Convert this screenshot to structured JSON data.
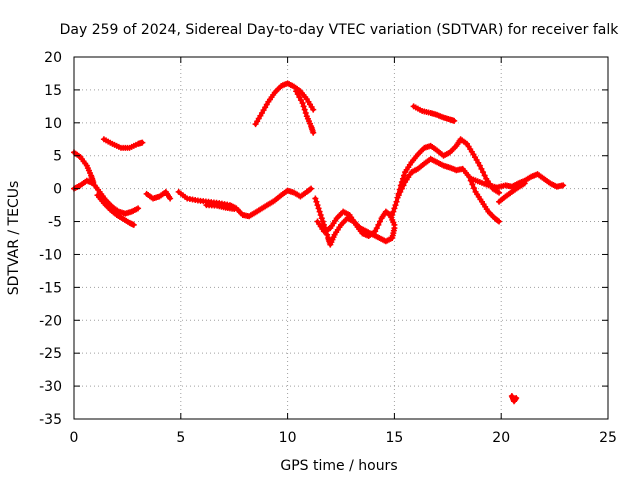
{
  "chart_data": {
    "type": "scatter",
    "title": "Day 259 of 2024, Sidereal Day-to-day VTEC variation (SDTVAR) for receiver falk",
    "xlabel": "GPS time / hours",
    "ylabel": "SDTVAR / TECUs",
    "xlim": [
      0,
      25
    ],
    "ylim": [
      -35,
      20
    ],
    "xticks": [
      0,
      5,
      10,
      15,
      20,
      25
    ],
    "yticks": [
      20,
      15,
      10,
      5,
      0,
      -5,
      -10,
      -15,
      -20,
      -25,
      -30,
      -35
    ],
    "grid": true,
    "legend": "none",
    "marker_color": "#ff0000",
    "series": [
      {
        "name": "tracks",
        "segments": [
          [
            [
              0.0,
              5.5
            ],
            [
              0.3,
              4.8
            ],
            [
              0.6,
              3.5
            ],
            [
              0.8,
              2.0
            ],
            [
              0.9,
              1.0
            ]
          ],
          [
            [
              0.0,
              0.0
            ],
            [
              0.3,
              0.5
            ],
            [
              0.6,
              1.2
            ],
            [
              0.9,
              0.8
            ],
            [
              1.2,
              -0.5
            ],
            [
              1.5,
              -1.8
            ],
            [
              1.8,
              -2.8
            ],
            [
              2.1,
              -3.5
            ],
            [
              2.4,
              -3.8
            ],
            [
              2.7,
              -3.5
            ],
            [
              3.0,
              -3.0
            ]
          ],
          [
            [
              1.1,
              -1.0
            ],
            [
              1.4,
              -2.2
            ],
            [
              1.7,
              -3.2
            ],
            [
              2.0,
              -4.0
            ],
            [
              2.3,
              -4.6
            ],
            [
              2.6,
              -5.2
            ],
            [
              2.8,
              -5.5
            ]
          ],
          [
            [
              1.4,
              7.5
            ],
            [
              1.8,
              6.8
            ],
            [
              2.2,
              6.2
            ],
            [
              2.6,
              6.2
            ],
            [
              3.0,
              6.8
            ],
            [
              3.2,
              7.0
            ]
          ],
          [
            [
              3.4,
              -0.8
            ],
            [
              3.7,
              -1.5
            ],
            [
              4.0,
              -1.2
            ],
            [
              4.3,
              -0.5
            ],
            [
              4.5,
              -1.5
            ]
          ],
          [
            [
              4.9,
              -0.5
            ],
            [
              5.3,
              -1.5
            ],
            [
              5.8,
              -1.8
            ],
            [
              6.3,
              -2.0
            ],
            [
              6.8,
              -2.2
            ],
            [
              7.3,
              -2.5
            ],
            [
              7.6,
              -3.0
            ],
            [
              7.9,
              -4.0
            ],
            [
              8.2,
              -4.2
            ],
            [
              8.5,
              -3.6
            ],
            [
              8.8,
              -3.0
            ],
            [
              9.1,
              -2.4
            ],
            [
              9.4,
              -1.8
            ],
            [
              9.7,
              -1.0
            ],
            [
              10.0,
              -0.3
            ],
            [
              10.3,
              -0.6
            ],
            [
              10.6,
              -1.2
            ],
            [
              10.9,
              -0.5
            ],
            [
              11.1,
              0.0
            ]
          ],
          [
            [
              6.2,
              -2.5
            ],
            [
              6.7,
              -2.6
            ],
            [
              7.1,
              -2.9
            ],
            [
              7.5,
              -3.1
            ]
          ],
          [
            [
              8.5,
              9.8
            ],
            [
              8.8,
              11.5
            ],
            [
              9.1,
              13.2
            ],
            [
              9.4,
              14.6
            ],
            [
              9.7,
              15.6
            ],
            [
              10.0,
              16.0
            ],
            [
              10.3,
              15.5
            ],
            [
              10.6,
              14.8
            ],
            [
              10.9,
              13.6
            ],
            [
              11.2,
              12.0
            ]
          ],
          [
            [
              10.4,
              14.8
            ],
            [
              10.7,
              13.0
            ],
            [
              10.9,
              11.0
            ],
            [
              11.1,
              9.5
            ],
            [
              11.2,
              8.5
            ]
          ],
          [
            [
              11.3,
              -1.5
            ],
            [
              11.5,
              -3.5
            ],
            [
              11.7,
              -5.5
            ],
            [
              11.9,
              -7.5
            ],
            [
              12.0,
              -8.5
            ],
            [
              12.2,
              -7.0
            ],
            [
              12.5,
              -5.5
            ],
            [
              12.8,
              -4.5
            ],
            [
              13.1,
              -5.0
            ],
            [
              13.4,
              -6.0
            ],
            [
              13.7,
              -6.5
            ],
            [
              14.0,
              -7.0
            ],
            [
              14.3,
              -7.5
            ],
            [
              14.6,
              -8.0
            ],
            [
              14.9,
              -7.5
            ],
            [
              15.0,
              -6.0
            ]
          ],
          [
            [
              11.4,
              -5.0
            ],
            [
              11.7,
              -6.5
            ],
            [
              12.0,
              -6.0
            ],
            [
              12.3,
              -4.5
            ],
            [
              12.6,
              -3.5
            ],
            [
              12.9,
              -4.0
            ],
            [
              13.2,
              -5.5
            ],
            [
              13.5,
              -6.8
            ],
            [
              13.8,
              -7.2
            ],
            [
              14.1,
              -6.5
            ],
            [
              14.4,
              -4.5
            ],
            [
              14.6,
              -3.5
            ],
            [
              14.8,
              -4.0
            ],
            [
              15.0,
              -5.5
            ]
          ],
          [
            [
              14.9,
              -4.0
            ],
            [
              15.1,
              -2.0
            ],
            [
              15.3,
              0.5
            ],
            [
              15.5,
              2.5
            ],
            [
              15.8,
              4.0
            ],
            [
              16.1,
              5.2
            ],
            [
              16.4,
              6.2
            ],
            [
              16.7,
              6.5
            ],
            [
              17.0,
              5.8
            ],
            [
              17.3,
              5.0
            ],
            [
              17.6,
              5.5
            ],
            [
              17.9,
              6.5
            ],
            [
              18.1,
              7.5
            ],
            [
              18.4,
              6.8
            ],
            [
              18.7,
              5.2
            ],
            [
              19.0,
              3.5
            ],
            [
              19.3,
              1.5
            ],
            [
              19.6,
              0.0
            ],
            [
              19.9,
              -0.6
            ]
          ],
          [
            [
              15.2,
              -1.0
            ],
            [
              15.5,
              1.0
            ],
            [
              15.8,
              2.5
            ],
            [
              16.1,
              3.0
            ],
            [
              16.4,
              3.8
            ],
            [
              16.7,
              4.5
            ],
            [
              17.0,
              4.0
            ],
            [
              17.3,
              3.5
            ],
            [
              17.6,
              3.2
            ],
            [
              17.9,
              2.8
            ],
            [
              18.2,
              3.0
            ],
            [
              18.5,
              1.8
            ],
            [
              18.8,
              -0.5
            ],
            [
              19.1,
              -2.0
            ],
            [
              19.4,
              -3.5
            ],
            [
              19.7,
              -4.5
            ],
            [
              19.9,
              -5.0
            ]
          ],
          [
            [
              15.9,
              12.5
            ],
            [
              16.3,
              11.8
            ],
            [
              16.7,
              11.5
            ],
            [
              17.0,
              11.2
            ],
            [
              17.3,
              10.8
            ],
            [
              17.6,
              10.5
            ],
            [
              17.8,
              10.3
            ]
          ],
          [
            [
              18.6,
              1.5
            ],
            [
              19.0,
              1.0
            ],
            [
              19.4,
              0.5
            ],
            [
              19.8,
              0.2
            ],
            [
              20.2,
              0.5
            ],
            [
              20.5,
              0.3
            ],
            [
              20.8,
              0.8
            ],
            [
              21.1,
              1.2
            ],
            [
              21.4,
              1.8
            ],
            [
              21.7,
              2.2
            ],
            [
              22.0,
              1.5
            ],
            [
              22.3,
              0.8
            ],
            [
              22.6,
              0.3
            ],
            [
              22.9,
              0.5
            ]
          ],
          [
            [
              19.9,
              -2.0
            ],
            [
              20.2,
              -1.2
            ],
            [
              20.5,
              -0.5
            ],
            [
              20.8,
              0.2
            ],
            [
              21.1,
              0.8
            ]
          ],
          [
            [
              20.5,
              -31.5
            ],
            [
              20.6,
              -32.3
            ],
            [
              20.7,
              -31.8
            ]
          ]
        ]
      }
    ]
  }
}
